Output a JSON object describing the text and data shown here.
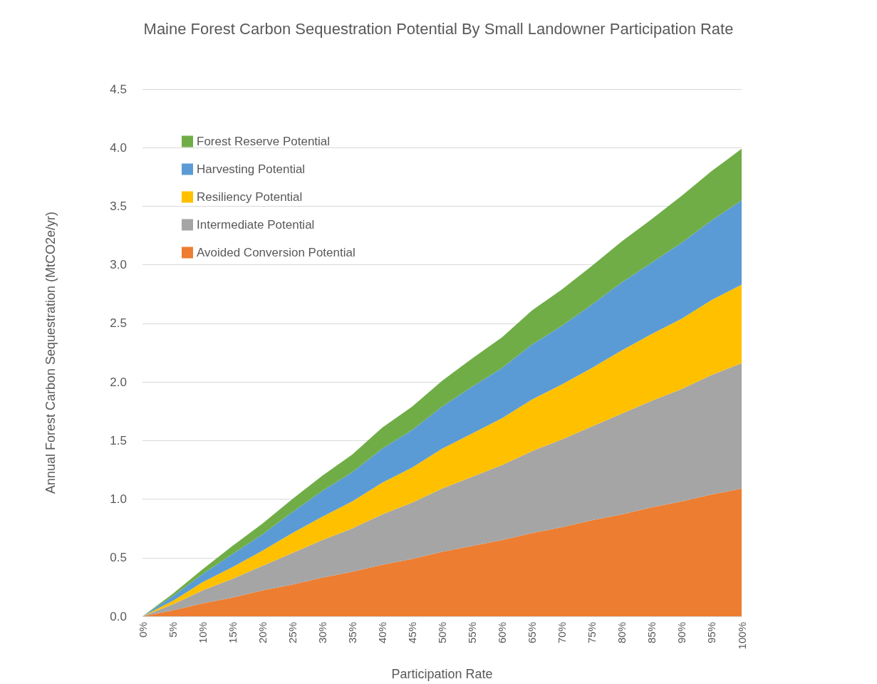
{
  "chart_data": {
    "type": "area",
    "title": "Maine Forest Carbon Sequestration Potential By Small Landowner Participation Rate",
    "xlabel": "Participation Rate",
    "ylabel": "Annual Forest Carbon Sequestration (MtCO2e/yr)",
    "categories": [
      "0%",
      "5%",
      "10%",
      "15%",
      "20%",
      "25%",
      "30%",
      "35%",
      "40%",
      "45%",
      "50%",
      "55%",
      "60%",
      "65%",
      "70%",
      "75%",
      "80%",
      "85%",
      "90%",
      "95%",
      "100%"
    ],
    "stacked": true,
    "ylim": [
      0,
      4.5
    ],
    "yticks": [
      {
        "value": 0,
        "label": "0.0"
      },
      {
        "value": 0.5,
        "label": "0.5"
      },
      {
        "value": 1,
        "label": "1.0"
      },
      {
        "value": 1.5,
        "label": "1.5"
      },
      {
        "value": 2,
        "label": "2.0"
      },
      {
        "value": 2.5,
        "label": "2.5"
      },
      {
        "value": 3,
        "label": "3.0"
      },
      {
        "value": 3.5,
        "label": "3.5"
      },
      {
        "value": 4,
        "label": "4.0"
      },
      {
        "value": 4.5,
        "label": "4.5"
      }
    ],
    "grid": "y",
    "legend": "top left",
    "series": [
      {
        "name": "Avoided Conversion Potential",
        "color": "#ed7d31",
        "values": [
          0,
          0.05,
          0.11,
          0.16,
          0.22,
          0.27,
          0.33,
          0.38,
          0.44,
          0.49,
          0.55,
          0.6,
          0.65,
          0.71,
          0.76,
          0.82,
          0.87,
          0.93,
          0.98,
          1.04,
          1.09
        ]
      },
      {
        "name": "Intermediate Potential",
        "color": "#a5a5a5",
        "values": [
          0,
          0.05,
          0.11,
          0.16,
          0.21,
          0.27,
          0.32,
          0.37,
          0.43,
          0.48,
          0.54,
          0.59,
          0.64,
          0.7,
          0.75,
          0.8,
          0.86,
          0.91,
          0.96,
          1.02,
          1.07
        ]
      },
      {
        "name": "Resiliency Potential",
        "color": "#ffc000",
        "values": [
          0,
          0.03,
          0.07,
          0.1,
          0.13,
          0.17,
          0.2,
          0.23,
          0.27,
          0.3,
          0.34,
          0.37,
          0.4,
          0.44,
          0.47,
          0.5,
          0.54,
          0.57,
          0.6,
          0.64,
          0.67
        ]
      },
      {
        "name": "Harvesting Potential",
        "color": "#5b9bd5",
        "values": [
          0,
          0.04,
          0.07,
          0.11,
          0.14,
          0.18,
          0.22,
          0.25,
          0.29,
          0.32,
          0.36,
          0.4,
          0.43,
          0.47,
          0.5,
          0.54,
          0.58,
          0.61,
          0.65,
          0.68,
          0.72
        ]
      },
      {
        "name": "Forest Reserve Potential",
        "color": "#70ad47",
        "values": [
          0,
          0.02,
          0.04,
          0.07,
          0.09,
          0.11,
          0.13,
          0.15,
          0.18,
          0.2,
          0.22,
          0.24,
          0.26,
          0.29,
          0.31,
          0.33,
          0.35,
          0.37,
          0.4,
          0.42,
          0.44
        ]
      }
    ]
  }
}
